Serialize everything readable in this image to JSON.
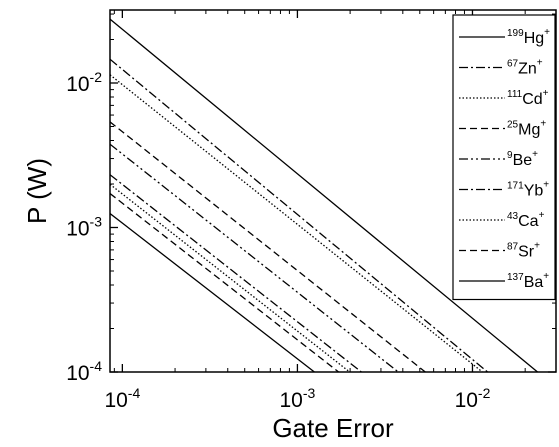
{
  "chart_data": {
    "type": "line",
    "xlabel": "Gate Error",
    "ylabel": "P (W)",
    "x_scale": "log",
    "y_scale": "log",
    "xlim": [
      8.5e-05,
      0.03
    ],
    "ylim": [
      0.0001,
      0.032
    ],
    "x_ticks": [
      {
        "value": 0.0001,
        "base": "10",
        "exp": "-4"
      },
      {
        "value": 0.001,
        "base": "10",
        "exp": "-3"
      },
      {
        "value": 0.01,
        "base": "10",
        "exp": "-2"
      }
    ],
    "y_ticks": [
      {
        "value": 0.0001,
        "base": "10",
        "exp": "-4"
      },
      {
        "value": 0.001,
        "base": "10",
        "exp": "-3"
      },
      {
        "value": 0.01,
        "base": "10",
        "exp": "-2"
      }
    ],
    "grid": false,
    "legend_position": "right",
    "series": [
      {
        "mass": "199",
        "element": "Hg",
        "charge": "+",
        "dash": "solid",
        "points": [
          [
            8.5e-05,
            0.0277
          ],
          [
            0.0277,
            8.5e-05
          ]
        ]
      },
      {
        "mass": "67",
        "element": "Zn",
        "charge": "+",
        "dash": "dashdot",
        "points": [
          [
            8.5e-05,
            0.0146
          ],
          [
            0.0122,
            0.0001
          ]
        ]
      },
      {
        "mass": "111",
        "element": "Cd",
        "charge": "+",
        "dash": "dotted",
        "points": [
          [
            8.5e-05,
            0.0114
          ],
          [
            0.0114,
            0.0001
          ]
        ]
      },
      {
        "mass": "25",
        "element": "Mg",
        "charge": "+",
        "dash": "dashed",
        "points": [
          [
            8.5e-05,
            0.00538
          ],
          [
            0.00538,
            0.0001
          ]
        ]
      },
      {
        "mass": "9",
        "element": "Be",
        "charge": "+",
        "dash": "dashdotdot",
        "points": [
          [
            8.5e-05,
            0.00377
          ],
          [
            0.00377,
            0.0001
          ]
        ]
      },
      {
        "mass": "171",
        "element": "Yb",
        "charge": "+",
        "dash": "dashdot",
        "points": [
          [
            8.5e-05,
            0.00232
          ],
          [
            0.00232,
            0.0001
          ]
        ]
      },
      {
        "mass": "43",
        "element": "Ca",
        "charge": "+",
        "dash": "dotted",
        "points": [
          [
            8.5e-05,
            0.00199
          ],
          [
            0.00199,
            0.0001
          ]
        ]
      },
      {
        "mass": "87",
        "element": "Sr",
        "charge": "+",
        "dash": "dashed",
        "points": [
          [
            8.5e-05,
            0.00172
          ],
          [
            0.00172,
            0.0001
          ]
        ]
      },
      {
        "mass": "137",
        "element": "Ba",
        "charge": "+",
        "dash": "solid",
        "points": [
          [
            8.5e-05,
            0.00125
          ],
          [
            0.00125,
            0.0001
          ]
        ]
      }
    ]
  }
}
